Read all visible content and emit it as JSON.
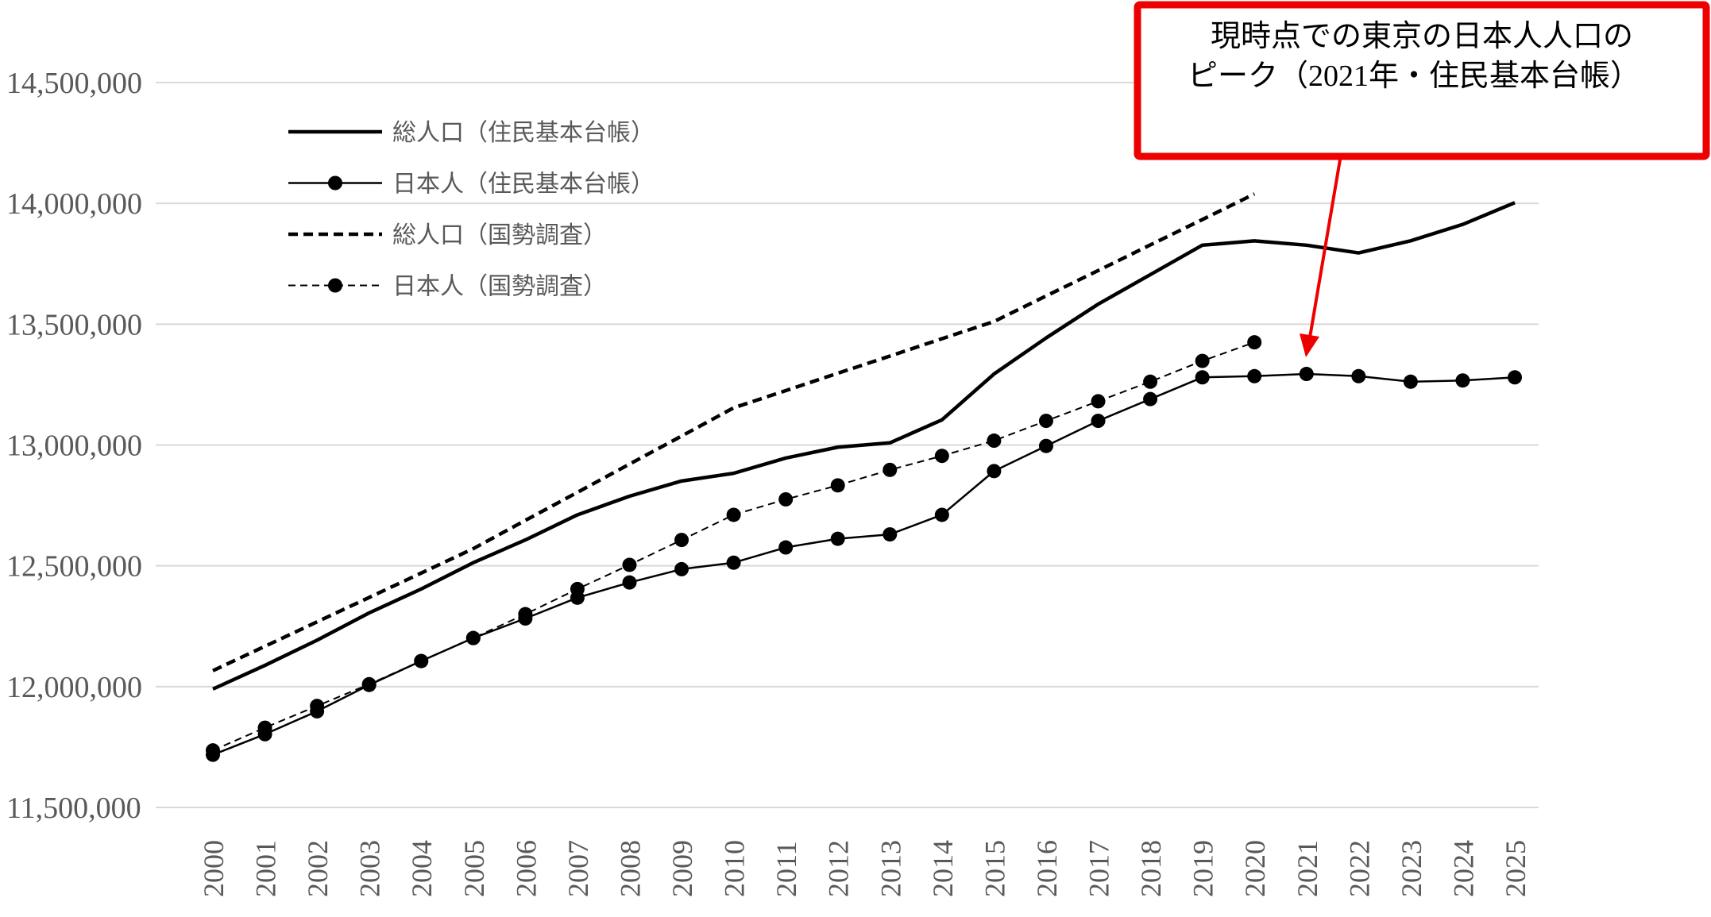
{
  "chart_data": {
    "type": "line",
    "title": "",
    "xlabel": "",
    "ylabel": "",
    "ylim": [
      11500000,
      14500000
    ],
    "yticks": [
      "11,500,000",
      "12,000,000",
      "12,500,000",
      "13,000,000",
      "13,500,000",
      "14,000,000",
      "14,500,000"
    ],
    "ytick_values": [
      11500000,
      12000000,
      12500000,
      13000000,
      13500000,
      14000000,
      14500000
    ],
    "grid": "horizontal",
    "legend_position": "top-left",
    "x": [
      2000,
      2001,
      2002,
      2003,
      2004,
      2005,
      2006,
      2007,
      2008,
      2009,
      2010,
      2011,
      2012,
      2013,
      2014,
      2015,
      2016,
      2017,
      2018,
      2019,
      2020,
      2021,
      2022,
      2023,
      2024,
      2025
    ],
    "series": [
      {
        "name": "総人口（住民基本台帳）",
        "style": "solid-thick",
        "marker": false,
        "values": [
          11990000,
          12088000,
          12192000,
          12305000,
          12404000,
          12513000,
          12607000,
          12711000,
          12788000,
          12851000,
          12883000,
          12946000,
          12991000,
          13009000,
          13104000,
          13294000,
          13443000,
          13583000,
          13705000,
          13827000,
          13845000,
          13827000,
          13795000,
          13845000,
          13913000,
          14003000
        ]
      },
      {
        "name": "日本人（住民基本台帳）",
        "style": "solid",
        "marker": true,
        "values": [
          11718000,
          11803000,
          11898000,
          12007000,
          12106000,
          12201000,
          12282000,
          12368000,
          12431000,
          12486000,
          12513000,
          12576000,
          12612000,
          12630000,
          12711000,
          12892000,
          12996000,
          13100000,
          13190000,
          13280000,
          13285000,
          13294000,
          13285000,
          13262000,
          13267000,
          13280000
        ]
      },
      {
        "name": "総人口（国勢調査）",
        "style": "dashed-thick",
        "marker": false,
        "values": [
          12066000,
          12167000,
          12268000,
          12369000,
          12470000,
          12571000,
          12688000,
          12804000,
          12921000,
          13037000,
          13154000,
          13225000,
          13297000,
          13368000,
          13440000,
          13511000,
          13617000,
          13722000,
          13828000,
          13933000,
          14039000,
          null,
          null,
          null,
          null,
          null
        ]
      },
      {
        "name": "日本人（国勢調査）",
        "style": "dashed",
        "marker": true,
        "values": [
          11736000,
          11830000,
          11920000,
          12010000,
          12106000,
          12201000,
          12300000,
          12404000,
          12504000,
          12607000,
          12711000,
          12775000,
          12833000,
          12897000,
          12955000,
          13018000,
          13100000,
          13181000,
          13262000,
          13348000,
          13425000,
          null,
          null,
          null,
          null,
          null
        ]
      }
    ],
    "annotation": {
      "lines": [
        "現時点での東京の日本人人口の",
        "ピーク（2021年・住民基本台帳）"
      ],
      "points_to_year": 2021,
      "color": "#EE0000"
    }
  }
}
